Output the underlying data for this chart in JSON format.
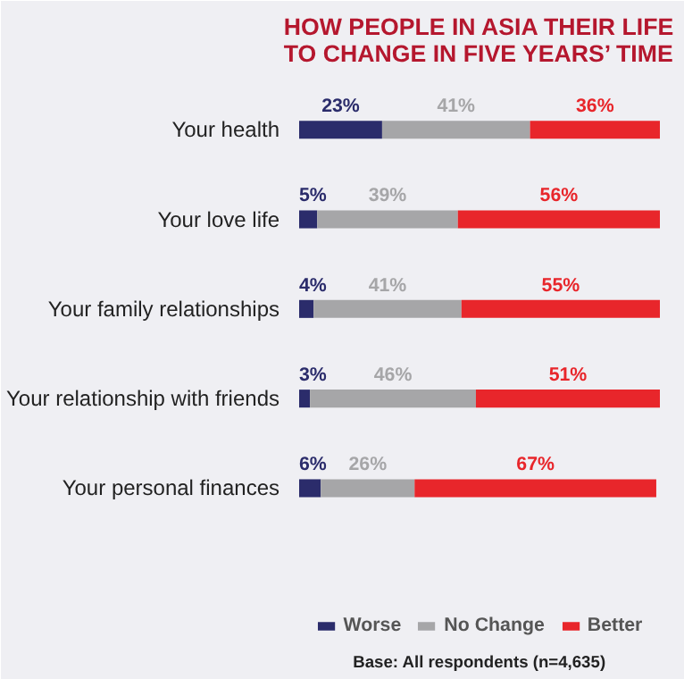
{
  "chart_data": {
    "type": "bar",
    "orientation": "horizontal",
    "stacked": true,
    "title": "HOW PEOPLE IN ASIA THEIR LIFE TO CHANGE IN FIVE YEARS’ TIME",
    "categories": [
      "Your health",
      "Your love life",
      "Your family relationships",
      "Your relationship with friends",
      "Your personal finances"
    ],
    "series": [
      {
        "name": "Worse",
        "color": "#2b2c6b",
        "values": [
          23,
          5,
          4,
          3,
          6
        ],
        "value_labels": [
          "23%",
          "5%",
          "4%",
          "3%",
          "6%"
        ]
      },
      {
        "name": "No Change",
        "color": "#a6a6a8",
        "values": [
          41,
          39,
          41,
          46,
          26
        ],
        "value_labels": [
          "41%",
          "39%",
          "41%",
          "46%",
          "26%"
        ]
      },
      {
        "name": "Better",
        "color": "#e8262b",
        "values": [
          36,
          56,
          55,
          51,
          67
        ],
        "value_labels": [
          "36%",
          "56%",
          "55%",
          "51%",
          "67%"
        ]
      }
    ],
    "legend": "bottom",
    "grid": false,
    "annotations": [
      "Base: All respondents (n=4,635)"
    ]
  }
}
